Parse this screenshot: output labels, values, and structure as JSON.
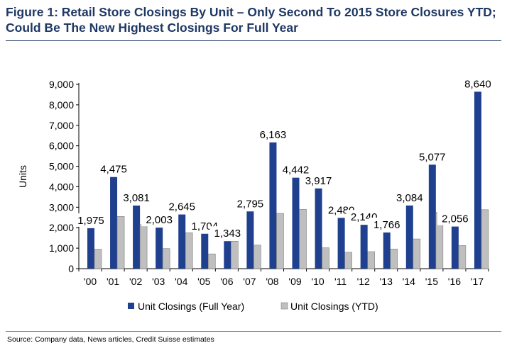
{
  "title": "Figure 1: Retail Store Closings By Unit – Only Second To 2015 Store Closures YTD; Could Be The New Highest Closings For Full Year",
  "source": "Source: Company data, News articles, Credit Suisse estimates",
  "chart_data": {
    "type": "bar",
    "categories": [
      "'00",
      "'01",
      "'02",
      "'03",
      "'04",
      "'05",
      "'06",
      "'07",
      "'08",
      "'09",
      "'10",
      "'11",
      "'12",
      "'13",
      "'14",
      "'15",
      "'16",
      "'17"
    ],
    "series": [
      {
        "name": "Unit Closings (Full Year)",
        "color": "#1f3f8f",
        "values": [
          1975,
          4475,
          3081,
          2003,
          2645,
          1704,
          1343,
          2795,
          6163,
          4442,
          3917,
          2480,
          2140,
          1766,
          3084,
          5077,
          2056,
          8640
        ]
      },
      {
        "name": "Unit Closings (YTD)",
        "color": "#bfbfbf",
        "values": [
          950,
          2550,
          2150,
          980,
          1750,
          720,
          1340,
          1150,
          2700,
          2900,
          1020,
          800,
          830,
          960,
          1450,
          2750,
          1130,
          2880
        ]
      }
    ],
    "data_labels": [
      "1,975",
      "4,475",
      "3,081",
      "2,003",
      "2,645",
      "1,704",
      "1,343",
      "2,795",
      "6,163",
      "4,442",
      "3,917",
      "2,480",
      "2,140",
      "1,766",
      "3,084",
      "5,077",
      "2,056",
      "8,640"
    ],
    "ylabel": "Units",
    "xlabel": "",
    "ylim": [
      0,
      9000
    ],
    "yticks": [
      0,
      1000,
      2000,
      3000,
      4000,
      5000,
      6000,
      7000,
      8000,
      9000
    ],
    "ytick_labels": [
      "0",
      "1,000",
      "2,000",
      "3,000",
      "4,000",
      "5,000",
      "6,000",
      "7,000",
      "8,000",
      "9,000"
    ],
    "grid": false,
    "legend_position": "bottom"
  }
}
